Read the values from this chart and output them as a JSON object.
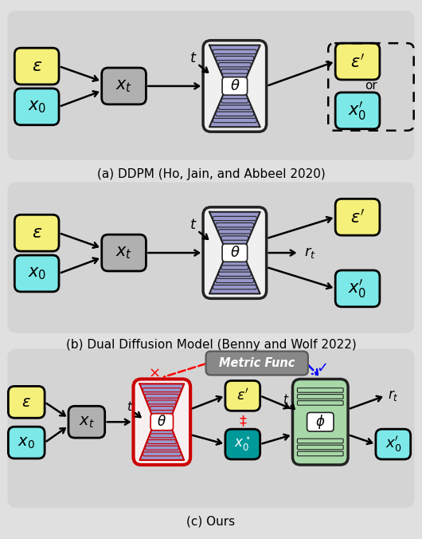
{
  "bg_color": "#e0e0e0",
  "panel_bg": "#d4d4d4",
  "yellow": "#f5f07a",
  "cyan": "#7de8e8",
  "gray_box": "#b0b0b0",
  "purple_fill": "#9898cc",
  "purple_light": "#c0c0e0",
  "green_fill": "#a8d8a8",
  "teal": "#009999",
  "unet_outer_bg": "#f0f0f0",
  "title_a": "(a) DDPM (Ho, Jain, and Abbeel 2020)",
  "title_b": "(b) Dual Diffusion Model (Benny and Wolf 2022)",
  "title_c": "(c) Ours"
}
